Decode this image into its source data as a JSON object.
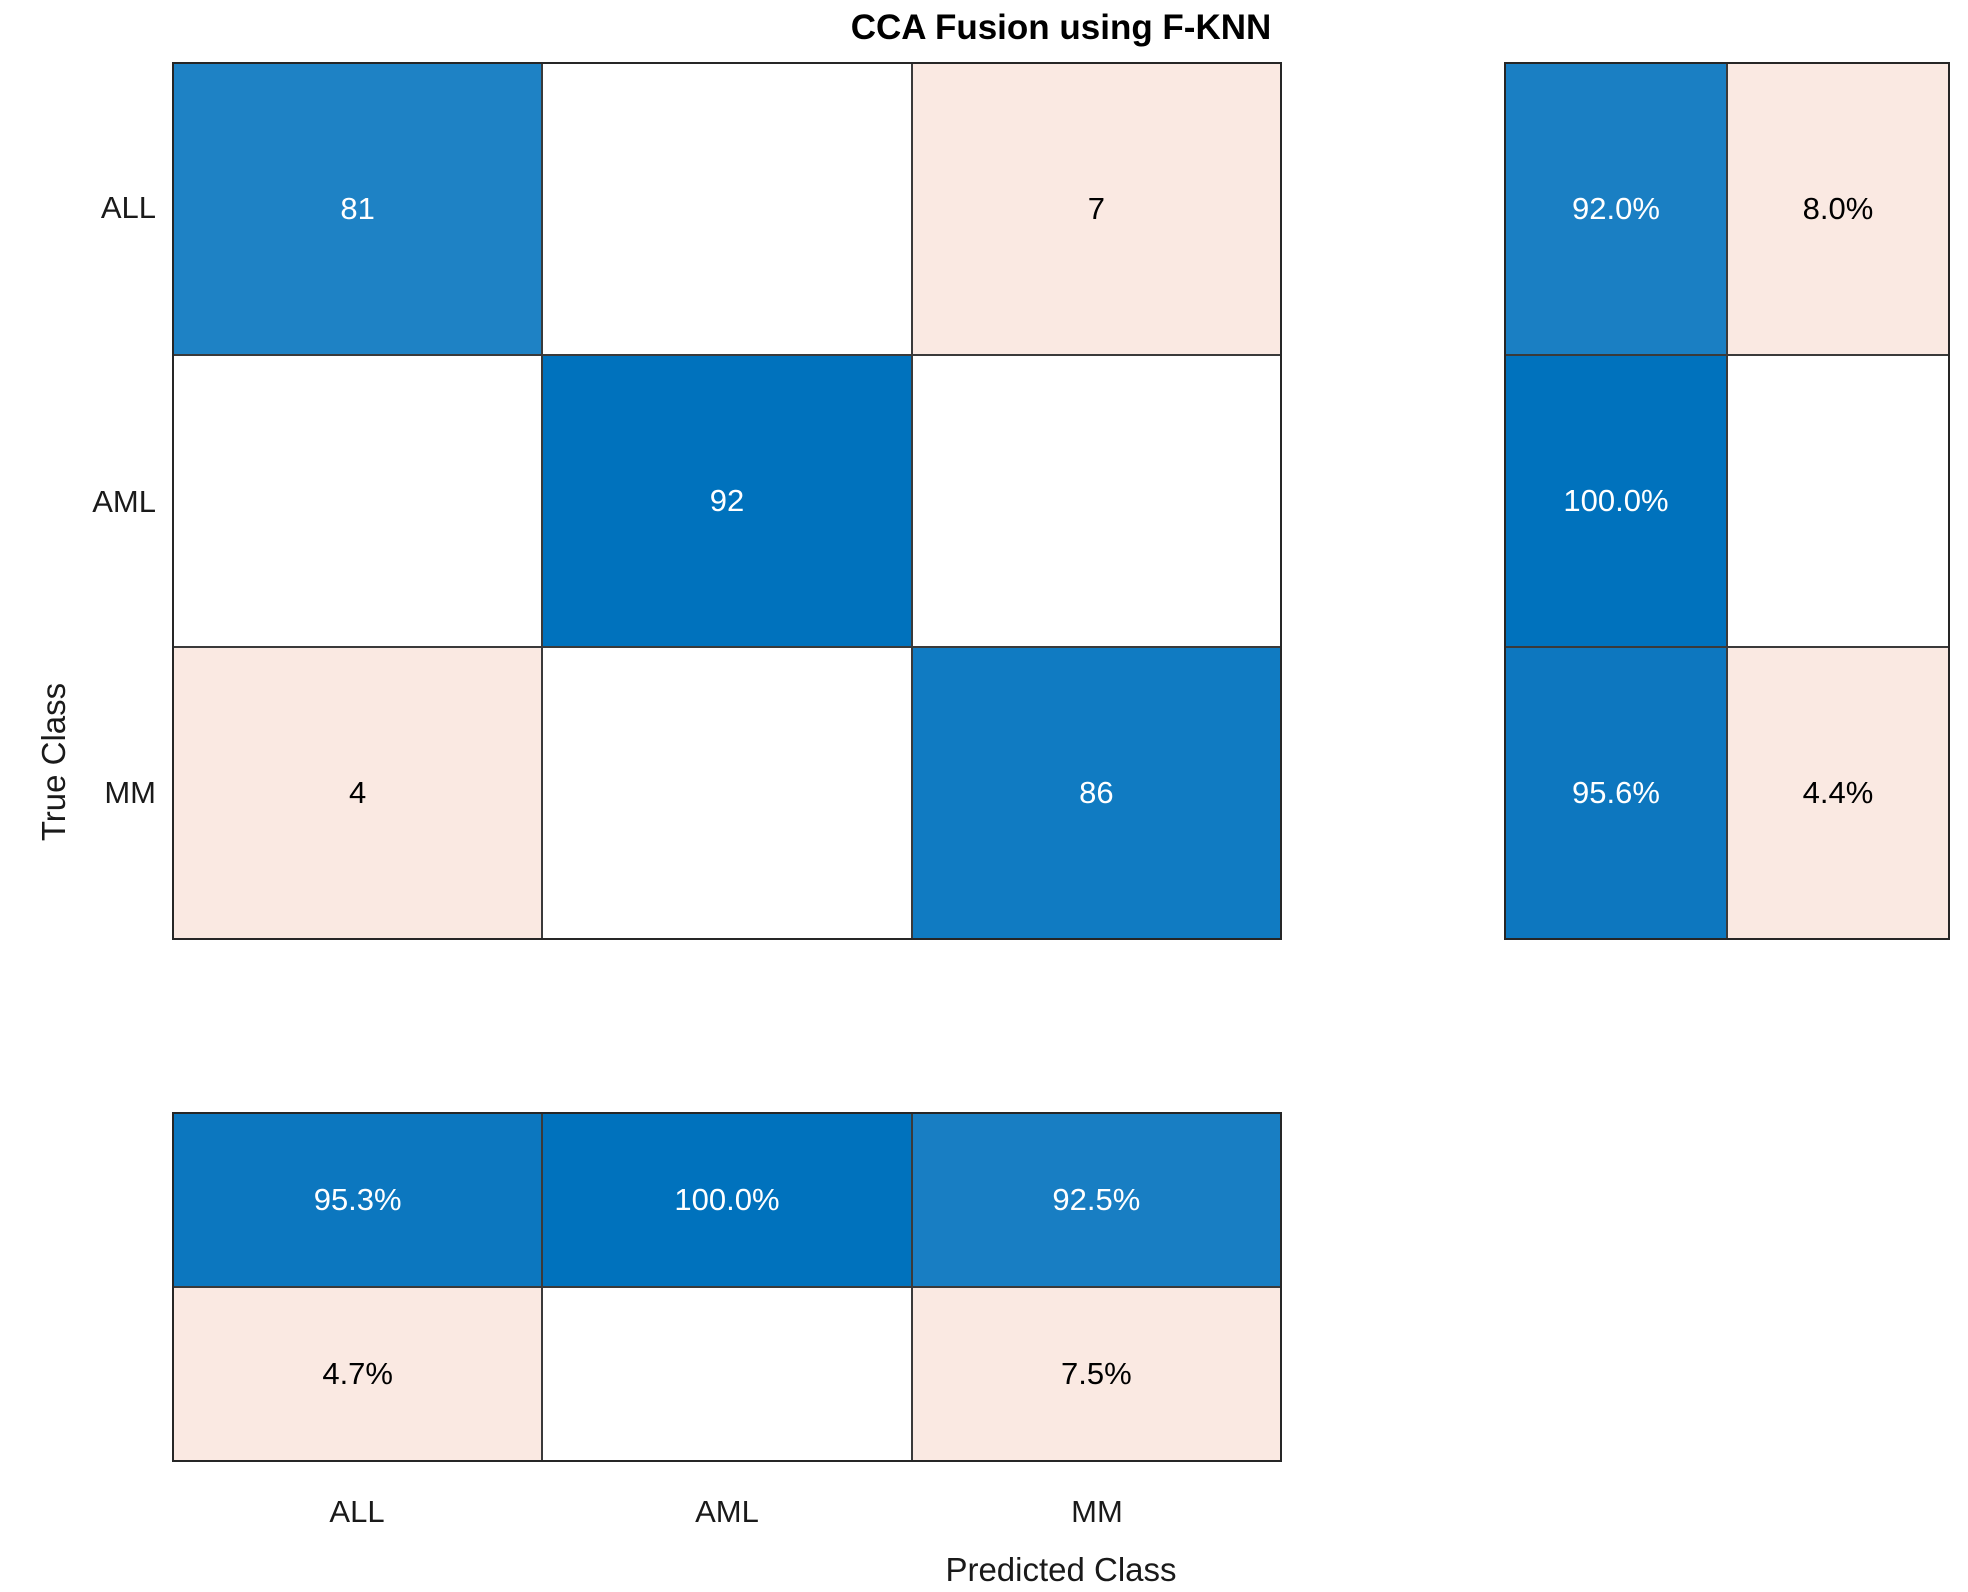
{
  "title": "CCA Fusion using F-KNN",
  "axes": {
    "x_title": "Predicted Class",
    "y_title": "True Class",
    "x_ticks": [
      "ALL",
      "AML",
      "MM"
    ],
    "y_ticks": [
      "ALL",
      "AML",
      "MM"
    ]
  },
  "colors": {
    "diagonal_blue_full": "#0072BD",
    "off_diagonal_pink": "#FAE9E2",
    "empty_cell": "#FFFFFF",
    "grid_line": "#3A3A3A",
    "outer_border": "#262626",
    "text_on_blue": "#FFFFFF",
    "text_on_light": "#000000"
  },
  "chart_data": {
    "type": "heatmap",
    "subtype": "confusion_matrix",
    "title": "CCA Fusion using F-KNN",
    "xlabel": "Predicted Class",
    "ylabel": "True Class",
    "classes": [
      "ALL",
      "AML",
      "MM"
    ],
    "grid": true,
    "legend_position": "none",
    "counts": [
      [
        81,
        0,
        7
      ],
      [
        0,
        92,
        0
      ],
      [
        4,
        0,
        86
      ]
    ],
    "row_summary_percent": [
      [
        92.0,
        8.0
      ],
      [
        100.0,
        null
      ],
      [
        95.6,
        4.4
      ]
    ],
    "column_summary_percent": [
      [
        95.3,
        100.0,
        92.5
      ],
      [
        4.7,
        null,
        7.5
      ]
    ],
    "matrix_cells": [
      [
        {
          "text": "81",
          "bg": "#1E82C5",
          "fg": "#FFFFFF"
        },
        {
          "text": "",
          "bg": "#FFFFFF",
          "fg": "#000000"
        },
        {
          "text": "7",
          "bg": "#FAE9E2",
          "fg": "#000000"
        }
      ],
      [
        {
          "text": "",
          "bg": "#FFFFFF",
          "fg": "#000000"
        },
        {
          "text": "92",
          "bg": "#0072BD",
          "fg": "#FFFFFF"
        },
        {
          "text": "",
          "bg": "#FFFFFF",
          "fg": "#000000"
        }
      ],
      [
        {
          "text": "4",
          "bg": "#FAE9E2",
          "fg": "#000000"
        },
        {
          "text": "",
          "bg": "#FFFFFF",
          "fg": "#000000"
        },
        {
          "text": "86",
          "bg": "#107BC2",
          "fg": "#FFFFFF"
        }
      ]
    ],
    "row_summary_cells": [
      [
        {
          "text": "92.0%",
          "bg": "#1A7FC3",
          "fg": "#FFFFFF"
        },
        {
          "text": "8.0%",
          "bg": "#FAE9E2",
          "fg": "#000000"
        }
      ],
      [
        {
          "text": "100.0%",
          "bg": "#0072BD",
          "fg": "#FFFFFF"
        },
        {
          "text": "",
          "bg": "#FFFFFF",
          "fg": "#000000"
        }
      ],
      [
        {
          "text": "95.6%",
          "bg": "#0D77BF",
          "fg": "#FFFFFF"
        },
        {
          "text": "4.4%",
          "bg": "#FAE9E2",
          "fg": "#000000"
        }
      ]
    ],
    "column_summary_cells": [
      [
        {
          "text": "95.3%",
          "bg": "#0C77BF",
          "fg": "#FFFFFF"
        },
        {
          "text": "100.0%",
          "bg": "#0072BD",
          "fg": "#FFFFFF"
        },
        {
          "text": "92.5%",
          "bg": "#187EC3",
          "fg": "#FFFFFF"
        }
      ],
      [
        {
          "text": "4.7%",
          "bg": "#FAE9E2",
          "fg": "#000000"
        },
        {
          "text": "",
          "bg": "#FFFFFF",
          "fg": "#000000"
        },
        {
          "text": "7.5%",
          "bg": "#FAE9E2",
          "fg": "#000000"
        }
      ]
    ]
  }
}
